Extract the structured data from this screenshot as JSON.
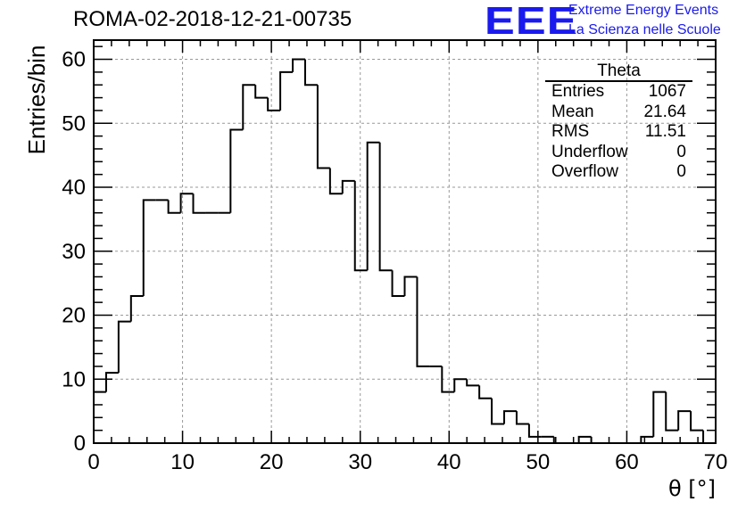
{
  "header": {
    "title": "ROMA-02-2018-12-21-00735",
    "logo_text": "EEE",
    "logo_line1": "Extreme Energy Events",
    "logo_line2": "La Scienza nelle Scuole"
  },
  "stats_box": {
    "name": "Theta",
    "rows": [
      {
        "label": "Entries",
        "value": "1067"
      },
      {
        "label": "Mean",
        "value": "21.64"
      },
      {
        "label": "RMS",
        "value": "11.51"
      },
      {
        "label": "Underflow",
        "value": "0"
      },
      {
        "label": "Overflow",
        "value": "0"
      }
    ]
  },
  "chart_data": {
    "type": "histogram",
    "xlabel": "θ [°]",
    "ylabel": "Entries/bin",
    "xlim": [
      0,
      70
    ],
    "ylim": [
      0,
      63
    ],
    "grid": true,
    "bin_width": 1.4,
    "x_ticks": [
      0,
      10,
      20,
      30,
      40,
      50,
      60,
      70
    ],
    "y_ticks": [
      0,
      10,
      20,
      30,
      40,
      50,
      60
    ],
    "values": [
      8,
      11,
      19,
      23,
      38,
      38,
      36,
      39,
      36,
      36,
      36,
      49,
      56,
      54,
      52,
      58,
      60,
      56,
      43,
      39,
      41,
      27,
      47,
      27,
      23,
      26,
      12,
      12,
      8,
      10,
      9,
      7,
      3,
      5,
      3,
      1,
      1,
      0,
      0,
      1,
      0,
      0,
      0,
      0,
      1,
      8,
      2,
      5,
      2,
      0
    ]
  }
}
